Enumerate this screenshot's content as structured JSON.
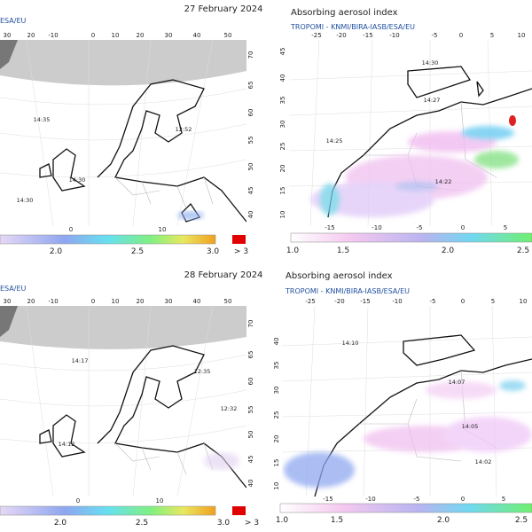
{
  "panels": [
    {
      "date": "27 February 2024",
      "credit": "ESA/EU",
      "lon_labels": [
        "30",
        "20",
        "-10",
        "0",
        "10",
        "20",
        "30",
        "40",
        "50"
      ],
      "lat_labels": [
        "70",
        "65",
        "60",
        "55",
        "50",
        "45",
        "40"
      ],
      "bottom_labels": [
        "0",
        "10"
      ],
      "time_labels": [
        "14:35",
        "12:52",
        "14:30",
        "14:30"
      ],
      "colorbar_labels": [
        "2.0",
        "2.5",
        "3.0",
        "> 3"
      ]
    },
    {
      "title": "Absorbing aerosol index",
      "source": "TROPOMI  -  KNMI/BIRA-IASB/ESA/EU",
      "lon_labels": [
        "-25",
        "-20",
        "-15",
        "-10",
        "-5",
        "0",
        "5",
        "10"
      ],
      "lat_labels": [
        "45",
        "40",
        "35",
        "30",
        "25",
        "20",
        "15",
        "10"
      ],
      "bottom_labels": [
        "-15",
        "-10",
        "-5",
        "0",
        "5"
      ],
      "time_labels": [
        "14:30",
        "14:27",
        "14:25",
        "14:22"
      ],
      "colorbar_labels": [
        "1.0",
        "1.5",
        "2.0",
        "2.5"
      ]
    },
    {
      "date": "28 February 2024",
      "credit": "ESA/EU",
      "lon_labels": [
        "30",
        "20",
        "-10",
        "0",
        "10",
        "20",
        "30",
        "40",
        "50"
      ],
      "lat_labels": [
        "70",
        "65",
        "60",
        "55",
        "50",
        "45",
        "40"
      ],
      "bottom_labels": [
        "0",
        "10"
      ],
      "time_labels": [
        "14:17",
        "12:35",
        "12:32",
        "14:12"
      ],
      "colorbar_labels": [
        "2.0",
        "2.5",
        "3.0",
        "> 3"
      ]
    },
    {
      "title": "Absorbing aerosol index",
      "source": "TROPOMI  -  KNMI/BIRA-IASB/ESA/EU",
      "lon_labels": [
        "-25",
        "-20",
        "-15",
        "-10",
        "-5",
        "0",
        "5",
        "10"
      ],
      "lat_labels": [
        "40",
        "35",
        "30",
        "25",
        "20",
        "15",
        "10"
      ],
      "bottom_labels": [
        "-15",
        "-10",
        "-5",
        "0",
        "5"
      ],
      "time_labels": [
        "14:10",
        "14:07",
        "14:05",
        "14:02"
      ],
      "colorbar_labels": [
        "1.0",
        "1.5",
        "2.0",
        "2.5"
      ]
    }
  ]
}
